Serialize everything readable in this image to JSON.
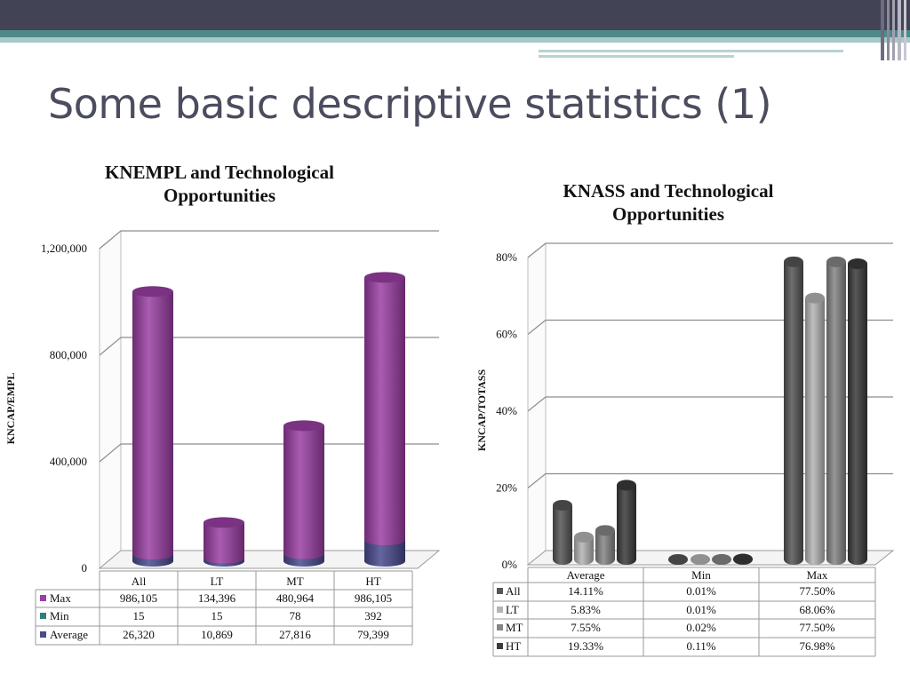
{
  "slide": {
    "title": "Some basic descriptive statistics (1)"
  },
  "colors": {
    "header_bar": "#434356",
    "accent_teal": "#4f8a8b",
    "max_purple": "#9b3fa4",
    "min_teal": "#2f7f7f",
    "average_navy": "#4a4a8f",
    "all_series": "#555555",
    "lt_series": "#b4b4b4",
    "mt_series": "#858585",
    "ht_series": "#3a3a3a"
  },
  "chart_data": [
    {
      "type": "bar",
      "title": "KNEMPL and Technological Opportunities",
      "title_lines": [
        "KNEMPL and Technological",
        "Opportunities"
      ],
      "ylabel": "KNCAP/EMPL",
      "xlabel": "",
      "ylim": [
        0,
        1200000
      ],
      "ytick_values": [
        0,
        400000,
        800000,
        1200000
      ],
      "ytick_labels": [
        "0",
        "400,000",
        "800,000",
        "1,200,000"
      ],
      "categories": [
        "All",
        "LT",
        "MT",
        "HT"
      ],
      "stacked": true,
      "series": [
        {
          "name": "Max",
          "values": [
            986105,
            134396,
            480964,
            986105
          ],
          "display": [
            "986,105",
            "134,396",
            "480,964",
            "986,105"
          ]
        },
        {
          "name": "Min",
          "values": [
            15,
            15,
            78,
            392
          ],
          "display": [
            "15",
            "15",
            "78",
            "392"
          ]
        },
        {
          "name": "Average",
          "values": [
            26320,
            10869,
            27816,
            79399
          ],
          "display": [
            "26,320",
            "10,869",
            "27,816",
            "79,399"
          ]
        }
      ],
      "grid": true,
      "legend": "data-table"
    },
    {
      "type": "bar",
      "title": "KNASS and Technological Opportunities",
      "title_lines": [
        "KNASS and Technological",
        "Opportunities"
      ],
      "ylabel": "KNCAP/TOTASS",
      "xlabel": "",
      "ylim": [
        0,
        80
      ],
      "ytick_values": [
        0,
        20,
        40,
        60,
        80
      ],
      "ytick_labels": [
        "0%",
        "20%",
        "40%",
        "60%",
        "80%"
      ],
      "categories": [
        "Average",
        "Min",
        "Max"
      ],
      "series": [
        {
          "name": "All",
          "values": [
            14.11,
            0.01,
            77.5
          ],
          "display": [
            "14.11%",
            "0.01%",
            "77.50%"
          ]
        },
        {
          "name": "LT",
          "values": [
            5.83,
            0.01,
            68.06
          ],
          "display": [
            "5.83%",
            "0.01%",
            "68.06%"
          ]
        },
        {
          "name": "MT",
          "values": [
            7.55,
            0.02,
            77.5
          ],
          "display": [
            "7.55%",
            "0.02%",
            "77.50%"
          ]
        },
        {
          "name": "HT",
          "values": [
            19.33,
            0.11,
            76.98
          ],
          "display": [
            "19.33%",
            "0.11%",
            "76.98%"
          ]
        }
      ],
      "grid": true,
      "legend": "data-table"
    }
  ]
}
